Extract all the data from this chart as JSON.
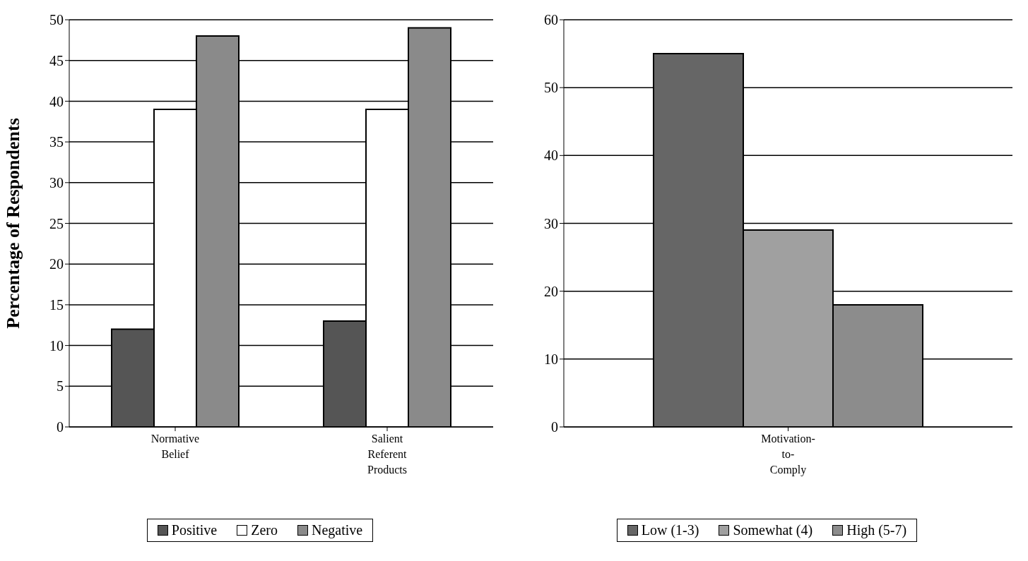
{
  "chart_data": [
    {
      "type": "bar",
      "ylabel": "Percentage of Respondents",
      "categories": [
        "Normative Belief",
        "Salient Referent Products"
      ],
      "series": [
        {
          "name": "Positive",
          "color": "#555555",
          "values": [
            12,
            13
          ]
        },
        {
          "name": "Zero",
          "color": "#ffffff",
          "values": [
            39,
            39
          ]
        },
        {
          "name": "Negative",
          "color": "#8a8a8a",
          "values": [
            48,
            49
          ]
        }
      ],
      "ylim": [
        0,
        50
      ],
      "yticks": [
        0,
        5,
        10,
        15,
        20,
        25,
        30,
        35,
        40,
        45,
        50
      ],
      "grid": "y",
      "legend": "bottom"
    },
    {
      "type": "bar",
      "categories": [
        "Motivation-to-Comply"
      ],
      "series": [
        {
          "name": "Low (1-3)",
          "color": "#666666",
          "values": [
            55
          ]
        },
        {
          "name": "Somewhat (4)",
          "color": "#a0a0a0",
          "values": [
            29
          ]
        },
        {
          "name": "High (5-7)",
          "color": "#8c8c8c",
          "values": [
            18
          ]
        }
      ],
      "ylim": [
        0,
        60
      ],
      "yticks": [
        0,
        10,
        20,
        30,
        40,
        50,
        60
      ],
      "grid": "y",
      "legend": "bottom"
    }
  ]
}
